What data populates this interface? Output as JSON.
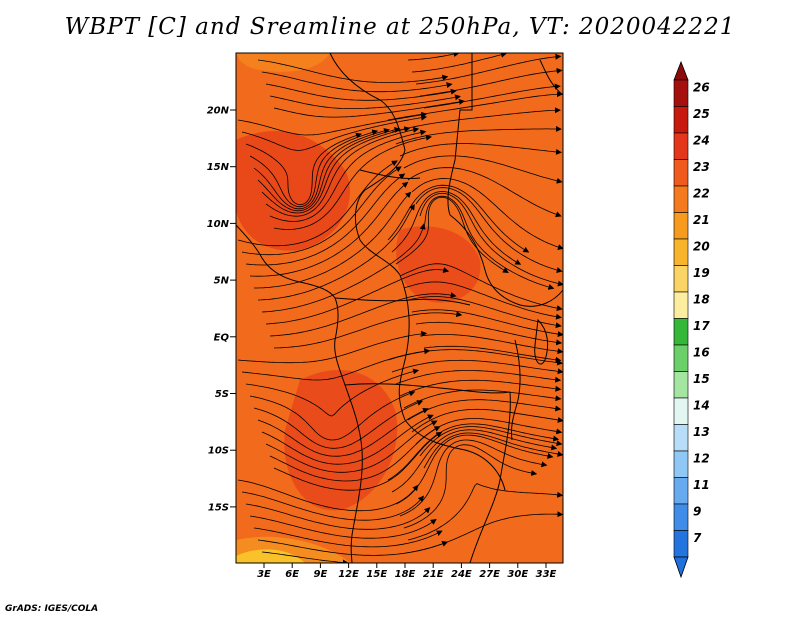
{
  "title": "WBPT [C] and Sreamline at 250hPa, VT: 2020042221",
  "credit": "GrADS: IGES/COLA",
  "map": {
    "lat_ticks": [
      "20N",
      "15N",
      "10N",
      "5N",
      "EQ",
      "5S",
      "10S",
      "15S"
    ],
    "lon_ticks": [
      "3E",
      "6E",
      "9E",
      "12E",
      "15E",
      "18E",
      "21E",
      "24E",
      "27E",
      "30E",
      "33E"
    ],
    "field_colors": {
      "base": "#f26a1b",
      "dark": "#e8461a",
      "light": "#f58c1f",
      "yellow": "#f9c12a"
    }
  },
  "colorbar": {
    "labels": [
      "26",
      "25",
      "24",
      "23",
      "22",
      "21",
      "20",
      "19",
      "18",
      "17",
      "16",
      "15",
      "14",
      "13",
      "12",
      "11",
      "9",
      "7"
    ],
    "colors": [
      "#a50f0d",
      "#c8190e",
      "#e4361a",
      "#f05a1c",
      "#f57a1e",
      "#f69b1d",
      "#f8b52c",
      "#fad464",
      "#fcee9e",
      "#35b739",
      "#6cd06a",
      "#a4e5a1",
      "#e2f6f2",
      "#b7ddf9",
      "#8fc8f5",
      "#66aaf0",
      "#3f8de8",
      "#2474e0"
    ],
    "top_arrow_color": "#8b0a0a",
    "bottom_arrow_color": "#1f6fdc"
  }
}
